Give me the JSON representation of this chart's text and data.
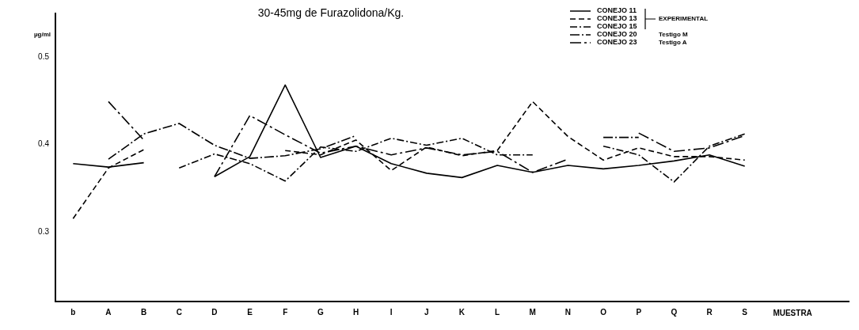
{
  "chart_data": {
    "type": "line",
    "title": "30-45mg de Furazolidona/Kg.",
    "ylabel": "µg/ml",
    "xlabel": "MUESTRA",
    "categories": [
      "b",
      "A",
      "B",
      "C",
      "D",
      "E",
      "F",
      "G",
      "H",
      "I",
      "J",
      "K",
      "L",
      "M",
      "N",
      "O",
      "P",
      "Q",
      "R",
      "S"
    ],
    "ylim": [
      0.22,
      0.55
    ],
    "yticks": [
      0.3,
      0.4,
      0.5
    ],
    "grid": false,
    "legend": "top right",
    "marker": "none",
    "series": [
      {
        "name": "CONEJO 11",
        "color": "#000000",
        "line_style": "solid",
        "values": [
          0.378,
          0.374,
          0.379,
          null,
          0.363,
          0.386,
          0.468,
          0.385,
          0.398,
          0.378,
          0.367,
          0.362,
          0.376,
          0.368,
          0.376,
          0.372,
          0.376,
          0.381,
          0.388,
          0.375
        ]
      },
      {
        "name": "CONEJO 13",
        "color": "#000000",
        "line_style": "dashed",
        "values": [
          0.315,
          0.373,
          0.394,
          null,
          null,
          null,
          0.393,
          0.388,
          0.405,
          0.37,
          0.397,
          0.387,
          0.393,
          0.449,
          0.409,
          0.382,
          0.396,
          0.386,
          0.386,
          0.382
        ]
      },
      {
        "name": "CONEJO 15",
        "color": "#000000",
        "line_style": "dashed",
        "values": [
          null,
          null,
          null,
          0.373,
          0.389,
          0.378,
          0.358,
          0.397,
          0.392,
          0.407,
          0.399,
          0.407,
          0.388,
          0.388,
          null,
          0.398,
          0.388,
          0.357,
          0.398,
          0.412
        ]
      },
      {
        "name": "CONEJO 20",
        "color": "#000000",
        "line_style": "dashed",
        "values": [
          null,
          0.383,
          0.412,
          0.424,
          0.399,
          0.384,
          0.387,
          0.395,
          0.41,
          null,
          null,
          null,
          null,
          null,
          null,
          0.408,
          0.408,
          null,
          null,
          null
        ]
      },
      {
        "name": "CONEJO 23",
        "color": "#000000",
        "line_style": "dashed",
        "values": [
          null,
          0.449,
          0.405,
          null,
          0.363,
          0.433,
          0.411,
          0.39,
          0.398,
          0.388,
          0.396,
          0.388,
          0.392,
          0.368,
          0.383,
          null,
          0.413,
          0.392,
          0.396,
          0.41
        ]
      }
    ],
    "annotations": [
      "EXPERIMENTAL",
      "Testigo M",
      "Testigo A"
    ]
  }
}
